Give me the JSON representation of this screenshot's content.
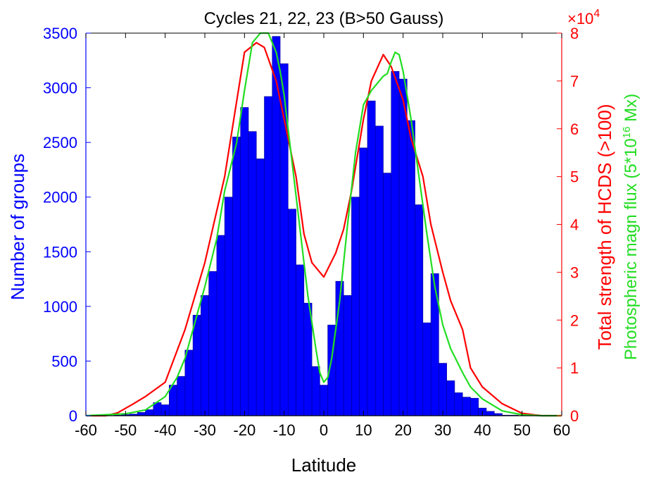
{
  "chart_data": {
    "type": "bar",
    "title": "Cycles 21, 22, 23 (B>50 Gauss)",
    "xlabel": "Latitude",
    "ylabel": "Number of groups",
    "y2label": "Total strength of HCDS (>100)",
    "y3label": "Photospheric magn flux (5*10^16 Mx)",
    "y3label_parts": {
      "pre": "Photospheric magn flux (5",
      "mid": "*10",
      "sup": "16",
      "post": " Mx)"
    },
    "y2_multiplier": "×10",
    "y2_multiplier_exp": "4",
    "xlim": [
      -60,
      60
    ],
    "ylim": [
      0,
      3500
    ],
    "y2lim": [
      0,
      80000
    ],
    "x_ticks": [
      "-60",
      "-50",
      "-40",
      "-30",
      "-20",
      "-10",
      "0",
      "10",
      "20",
      "30",
      "40",
      "50",
      "60"
    ],
    "y_ticks": [
      "0",
      "500",
      "1000",
      "1500",
      "2000",
      "2500",
      "3000",
      "3500"
    ],
    "y2_ticks": [
      "0",
      "1",
      "2",
      "3",
      "4",
      "5",
      "6",
      "7",
      "8"
    ],
    "bin_width": 2,
    "bins": {
      "x": [
        -52,
        -50,
        -48,
        -46,
        -44,
        -42,
        -40,
        -38,
        -36,
        -34,
        -32,
        -30,
        -28,
        -26,
        -24,
        -22,
        -20,
        -18,
        -16,
        -14,
        -12,
        -10,
        -8,
        -6,
        -4,
        -2,
        0,
        2,
        4,
        6,
        8,
        10,
        12,
        14,
        16,
        18,
        20,
        22,
        24,
        26,
        28,
        30,
        32,
        34,
        36,
        38,
        40,
        42,
        44,
        46,
        48,
        50,
        52
      ],
      "values": [
        5,
        10,
        15,
        30,
        55,
        120,
        100,
        280,
        360,
        600,
        920,
        1100,
        1320,
        1650,
        2000,
        2550,
        2820,
        2600,
        2350,
        2920,
        3470,
        3220,
        1890,
        1380,
        1030,
        450,
        280,
        830,
        1230,
        1100,
        2000,
        2450,
        2880,
        2650,
        2220,
        3150,
        3080,
        2700,
        1930,
        850,
        1300,
        480,
        320,
        210,
        170,
        160,
        70,
        40,
        20,
        5,
        5,
        0,
        0
      ]
    },
    "series": [
      {
        "name": "Total strength of HCDS (>100)",
        "color": "#ff0000",
        "axis": "right",
        "x": [
          -60,
          -55,
          -52,
          -48,
          -45,
          -40,
          -35,
          -30,
          -25,
          -20,
          -17,
          -15,
          -12,
          -10,
          -7,
          -5,
          -3,
          0,
          3,
          5,
          7,
          10,
          12,
          15,
          17,
          20,
          22,
          25,
          27,
          30,
          32,
          35,
          37,
          40,
          45,
          50,
          55,
          60
        ],
        "values": [
          0,
          0,
          600,
          2500,
          4000,
          7000,
          18000,
          32000,
          50000,
          76000,
          78000,
          77000,
          70000,
          62000,
          50000,
          38000,
          32000,
          29000,
          34000,
          39000,
          47000,
          62000,
          70000,
          75500,
          73000,
          66000,
          58000,
          50000,
          40000,
          30000,
          24000,
          18000,
          10000,
          6000,
          2500,
          500,
          0,
          0
        ]
      },
      {
        "name": "Photospheric magn flux (5*10^16 Mx)",
        "color": "#22dd22",
        "axis": "right",
        "x": [
          -60,
          -50,
          -45,
          -40,
          -37,
          -35,
          -33,
          -30,
          -27,
          -25,
          -22,
          -20,
          -18,
          -16,
          -14,
          -13,
          -12,
          -11,
          -10,
          -8,
          -6,
          -4,
          -2,
          -1,
          0,
          1,
          2,
          4,
          6,
          8,
          10,
          12,
          14,
          15,
          16,
          17,
          18,
          19,
          20,
          22,
          24,
          26,
          28,
          30,
          32,
          35,
          37,
          40,
          45,
          50,
          55,
          60
        ],
        "values": [
          0,
          400,
          1200,
          4000,
          8000,
          12000,
          18000,
          27000,
          37000,
          47000,
          57000,
          68000,
          78000,
          80000,
          80000,
          78000,
          76000,
          72000,
          67000,
          53000,
          39000,
          25000,
          14000,
          9000,
          7000,
          8000,
          12000,
          24000,
          40000,
          55000,
          65000,
          68000,
          70000,
          71000,
          71500,
          74000,
          76000,
          75500,
          72000,
          62000,
          50000,
          38000,
          27000,
          19000,
          14000,
          9000,
          6000,
          3500,
          1000,
          200,
          0,
          0
        ]
      }
    ],
    "colors": {
      "bars": "#0000ff",
      "bar_edge": "#00008b",
      "left_axis": "#0000ff",
      "right_axis": "#ff0000",
      "flux_label": "#22dd22"
    }
  }
}
